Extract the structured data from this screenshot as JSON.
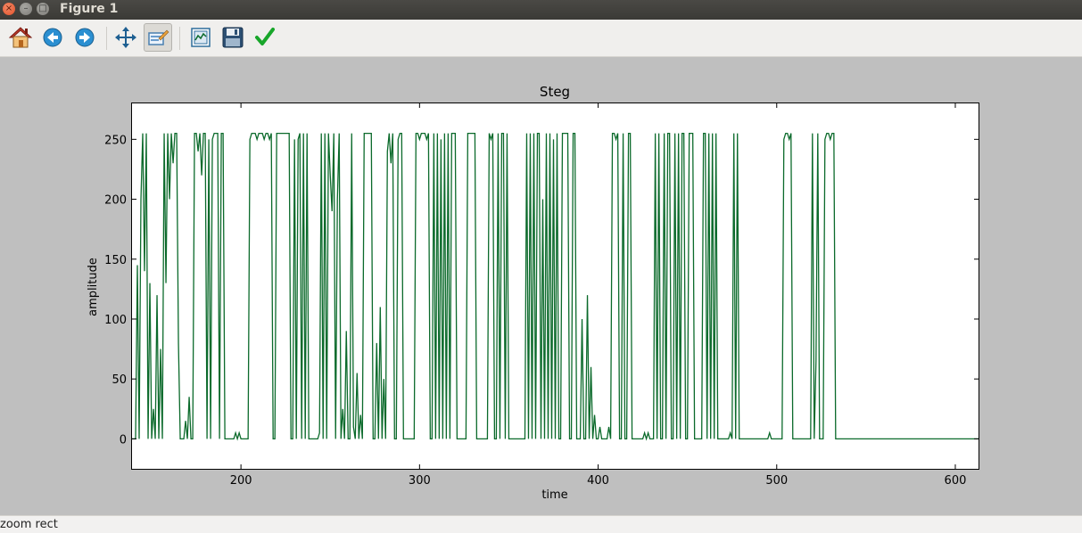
{
  "window": {
    "title": "Figure 1",
    "close_glyph": "×",
    "min_glyph": "–",
    "max_glyph": "□"
  },
  "toolbar": [
    {
      "name": "home-icon",
      "label": "Home"
    },
    {
      "name": "back-icon",
      "label": "Back"
    },
    {
      "name": "forward-icon",
      "label": "Forward"
    },
    {
      "name": "pan-icon",
      "label": "Pan"
    },
    {
      "name": "zoom-icon",
      "label": "Zoom",
      "active": true
    },
    {
      "name": "subplots-icon",
      "label": "Subplots"
    },
    {
      "name": "save-icon",
      "label": "Save"
    },
    {
      "name": "edit-icon",
      "label": "Edit"
    }
  ],
  "status": {
    "text": "zoom rect"
  },
  "colors": {
    "series": "#0b6a2b",
    "series2": "#1f5b8a"
  },
  "chart_data": {
    "type": "line",
    "title": "Steg",
    "xlabel": "time",
    "ylabel": "amplitude",
    "xlim": [
      139,
      613
    ],
    "ylim": [
      -25,
      280
    ],
    "xticks": [
      200,
      300,
      400,
      500,
      600
    ],
    "yticks": [
      0,
      50,
      100,
      150,
      200,
      250
    ],
    "grid": false,
    "series": [
      {
        "color": "#0b6a2b",
        "x_start": 139,
        "values": [
          0,
          0,
          0,
          145,
          0,
          200,
          255,
          140,
          255,
          0,
          130,
          0,
          25,
          0,
          120,
          0,
          75,
          0,
          255,
          130,
          255,
          200,
          255,
          230,
          255,
          255,
          80,
          0,
          0,
          0,
          15,
          0,
          35,
          0,
          0,
          255,
          255,
          240,
          255,
          220,
          255,
          255,
          0,
          250,
          0,
          250,
          255,
          255,
          255,
          0,
          255,
          255,
          0,
          0,
          0,
          0,
          0,
          0,
          5,
          0,
          5,
          0,
          0,
          0,
          0,
          0,
          250,
          255,
          255,
          255,
          250,
          255,
          255,
          255,
          250,
          255,
          255,
          250,
          255,
          0,
          0,
          255,
          255,
          255,
          255,
          255,
          255,
          255,
          255,
          0,
          0,
          250,
          0,
          250,
          255,
          0,
          255,
          0,
          255,
          0,
          0,
          0,
          0,
          0,
          0,
          5,
          255,
          0,
          255,
          0,
          255,
          220,
          190,
          255,
          0,
          200,
          255,
          0,
          25,
          0,
          90,
          0,
          0,
          255,
          10,
          0,
          55,
          0,
          20,
          0,
          255,
          255,
          255,
          255,
          255,
          0,
          0,
          80,
          0,
          110,
          0,
          50,
          0,
          240,
          255,
          230,
          255,
          0,
          0,
          250,
          255,
          255,
          0,
          0,
          0,
          0,
          0,
          0,
          0,
          255,
          255,
          250,
          255,
          255,
          255,
          250,
          255,
          0,
          0,
          255,
          0,
          255,
          0,
          250,
          0,
          255,
          0,
          255,
          0,
          255,
          255,
          255,
          0,
          0,
          0,
          0,
          0,
          0,
          255,
          255,
          255,
          255,
          255,
          0,
          0,
          0,
          0,
          0,
          0,
          0,
          255,
          250,
          255,
          0,
          0,
          255,
          0,
          255,
          255,
          0,
          255,
          0,
          0,
          0,
          0,
          0,
          0,
          0,
          0,
          0,
          0,
          255,
          0,
          255,
          0,
          255,
          0,
          255,
          255,
          0,
          200,
          0,
          255,
          0,
          255,
          0,
          250,
          0,
          255,
          0,
          0,
          255,
          255,
          255,
          255,
          0,
          0,
          255,
          255,
          0,
          0,
          0,
          100,
          0,
          0,
          120,
          0,
          60,
          0,
          20,
          0,
          0,
          10,
          0,
          0,
          0,
          0,
          10,
          0,
          255,
          255,
          250,
          255,
          0,
          0,
          255,
          0,
          0,
          255,
          255,
          0,
          0,
          0,
          0,
          0,
          0,
          0,
          5,
          0,
          5,
          0,
          0,
          0,
          255,
          0,
          255,
          0,
          0,
          255,
          0,
          255,
          255,
          0,
          0,
          255,
          0,
          255,
          0,
          255,
          255,
          0,
          0,
          255,
          255,
          255,
          0,
          0,
          0,
          0,
          0,
          255,
          255,
          0,
          255,
          0,
          255,
          0,
          255,
          0,
          0,
          0,
          0,
          0,
          0,
          0,
          5,
          0,
          255,
          0,
          255,
          0,
          0,
          0,
          0,
          0,
          0,
          0,
          0,
          0,
          0,
          0,
          0,
          0,
          0,
          0,
          0,
          0,
          5,
          0,
          0,
          0,
          0,
          0,
          0,
          0,
          250,
          255,
          255,
          250,
          255,
          0,
          0,
          0,
          0,
          0,
          0,
          0,
          0,
          0,
          0,
          0,
          255,
          0,
          65,
          255,
          0,
          0,
          0,
          250,
          255,
          255,
          250,
          255,
          255,
          0,
          0,
          0,
          0,
          0,
          0,
          0,
          0,
          0,
          0,
          0,
          0,
          0,
          0,
          0,
          0,
          0,
          0,
          0,
          0,
          0,
          0,
          0,
          0,
          0,
          0,
          0,
          0,
          0,
          0,
          0,
          0,
          0,
          0,
          0,
          0,
          0,
          0,
          0,
          0,
          0,
          0,
          0,
          0,
          0,
          0,
          0,
          0,
          0,
          0,
          0,
          0,
          0,
          0,
          0,
          0,
          0,
          0,
          0,
          0,
          0,
          0,
          0,
          0,
          0,
          0,
          0,
          0,
          0,
          0,
          0,
          0,
          0,
          0,
          0,
          0,
          0,
          0,
          0,
          0,
          0,
          0,
          0,
          0,
          0,
          0,
          0,
          0,
          0,
          0,
          0,
          0,
          0,
          0,
          0,
          0,
          0,
          0,
          0,
          0,
          0,
          0,
          0,
          0,
          0,
          0,
          0,
          0,
          0,
          0,
          0,
          0,
          0,
          0,
          0,
          0,
          0,
          0,
          0,
          0,
          0,
          0,
          0,
          0
        ]
      }
    ]
  }
}
